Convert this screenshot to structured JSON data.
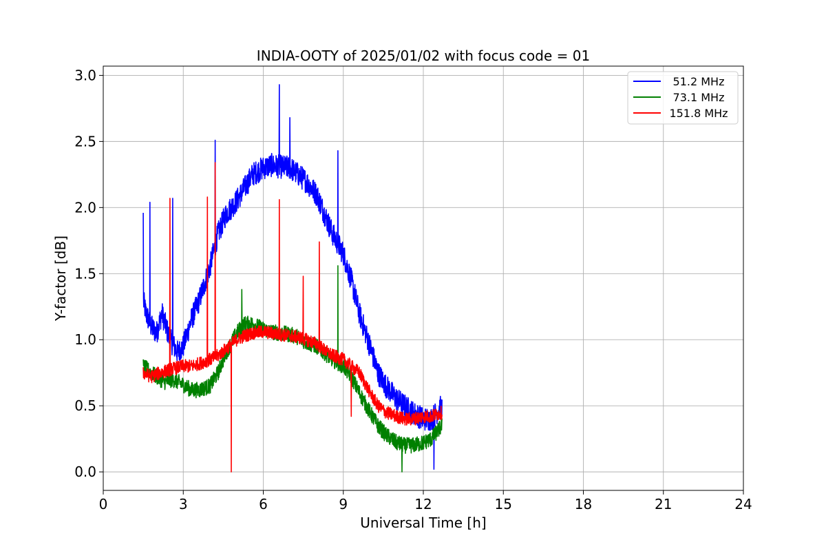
{
  "chart_data": {
    "type": "line",
    "title": "INDIA-OOTY of 2025/01/02 with focus code = 01",
    "xlabel": "Universal Time [h]",
    "ylabel": "Y-factor [dB]",
    "xlim": [
      0,
      24
    ],
    "ylim": [
      -0.14,
      3.07
    ],
    "xticks": [
      0,
      3,
      6,
      9,
      12,
      15,
      18,
      21,
      24
    ],
    "yticks": [
      0.0,
      0.5,
      1.0,
      1.5,
      2.0,
      2.5,
      3.0
    ],
    "xtick_labels": [
      "0",
      "3",
      "6",
      "9",
      "12",
      "15",
      "18",
      "21",
      "24"
    ],
    "ytick_labels": [
      "0.0",
      "0.5",
      "1.0",
      "1.5",
      "2.0",
      "2.5",
      "3.0"
    ],
    "grid": true,
    "legend_position": "top-right",
    "series": [
      {
        "name": "51.2 MHz",
        "color": "#0000ff",
        "x": [
          1.5,
          1.6,
          1.8,
          2.0,
          2.2,
          2.5,
          2.8,
          3.0,
          3.3,
          3.6,
          4.0,
          4.3,
          4.6,
          5.0,
          5.3,
          5.6,
          6.0,
          6.3,
          6.6,
          7.0,
          7.3,
          7.6,
          8.0,
          8.3,
          8.6,
          9.0,
          9.3,
          9.6,
          10.0,
          10.3,
          10.6,
          11.0,
          11.3,
          11.6,
          12.0,
          12.3,
          12.7
        ],
        "y": [
          1.3,
          1.2,
          1.1,
          1.05,
          1.2,
          1.0,
          0.9,
          0.95,
          1.15,
          1.3,
          1.55,
          1.8,
          1.95,
          2.05,
          2.15,
          2.25,
          2.3,
          2.32,
          2.31,
          2.3,
          2.25,
          2.2,
          2.1,
          1.95,
          1.8,
          1.65,
          1.45,
          1.2,
          0.95,
          0.75,
          0.65,
          0.55,
          0.5,
          0.45,
          0.4,
          0.4,
          0.5
        ],
        "spikes": [
          [
            1.5,
            1.96
          ],
          [
            1.75,
            2.04
          ],
          [
            2.6,
            2.07
          ],
          [
            4.2,
            2.51
          ],
          [
            6.6,
            2.93
          ],
          [
            7.0,
            2.68
          ],
          [
            8.8,
            2.43
          ],
          [
            12.4,
            0.02
          ]
        ]
      },
      {
        "name": "73.1 MHz",
        "color": "#008000",
        "x": [
          1.5,
          1.8,
          2.0,
          2.3,
          2.6,
          3.0,
          3.3,
          3.6,
          4.0,
          4.3,
          4.6,
          5.0,
          5.3,
          5.6,
          6.0,
          6.3,
          6.6,
          7.0,
          7.3,
          7.6,
          8.0,
          8.3,
          8.6,
          9.0,
          9.3,
          9.6,
          10.0,
          10.3,
          10.6,
          11.0,
          11.3,
          11.6,
          12.0,
          12.3,
          12.7
        ],
        "y": [
          0.8,
          0.75,
          0.72,
          0.68,
          0.7,
          0.66,
          0.62,
          0.62,
          0.65,
          0.75,
          0.9,
          1.05,
          1.12,
          1.12,
          1.08,
          1.06,
          1.05,
          1.04,
          1.02,
          0.98,
          0.95,
          0.9,
          0.85,
          0.8,
          0.72,
          0.6,
          0.45,
          0.35,
          0.28,
          0.22,
          0.2,
          0.2,
          0.22,
          0.25,
          0.35
        ],
        "spikes": [
          [
            5.2,
            1.38
          ],
          [
            8.8,
            1.56
          ],
          [
            11.2,
            0.0
          ]
        ]
      },
      {
        "name": "151.8 MHz",
        "color": "#ff0000",
        "x": [
          1.5,
          1.8,
          2.0,
          2.3,
          2.6,
          3.0,
          3.3,
          3.6,
          4.0,
          4.3,
          4.6,
          5.0,
          5.3,
          5.6,
          6.0,
          6.3,
          6.6,
          7.0,
          7.3,
          7.6,
          8.0,
          8.3,
          8.6,
          9.0,
          9.3,
          9.6,
          10.0,
          10.3,
          10.6,
          11.0,
          11.3,
          11.6,
          12.0,
          12.3,
          12.7
        ],
        "y": [
          0.75,
          0.72,
          0.74,
          0.76,
          0.78,
          0.8,
          0.8,
          0.82,
          0.85,
          0.88,
          0.93,
          1.0,
          1.03,
          1.05,
          1.06,
          1.05,
          1.04,
          1.03,
          1.02,
          1.0,
          0.97,
          0.92,
          0.88,
          0.85,
          0.8,
          0.75,
          0.6,
          0.5,
          0.45,
          0.42,
          0.4,
          0.4,
          0.42,
          0.42,
          0.45
        ],
        "spikes": [
          [
            2.5,
            2.07
          ],
          [
            3.9,
            2.08
          ],
          [
            4.2,
            2.34
          ],
          [
            4.8,
            0.0
          ],
          [
            6.6,
            2.06
          ],
          [
            7.5,
            1.48
          ],
          [
            8.1,
            1.74
          ],
          [
            9.3,
            0.42
          ]
        ]
      }
    ]
  }
}
